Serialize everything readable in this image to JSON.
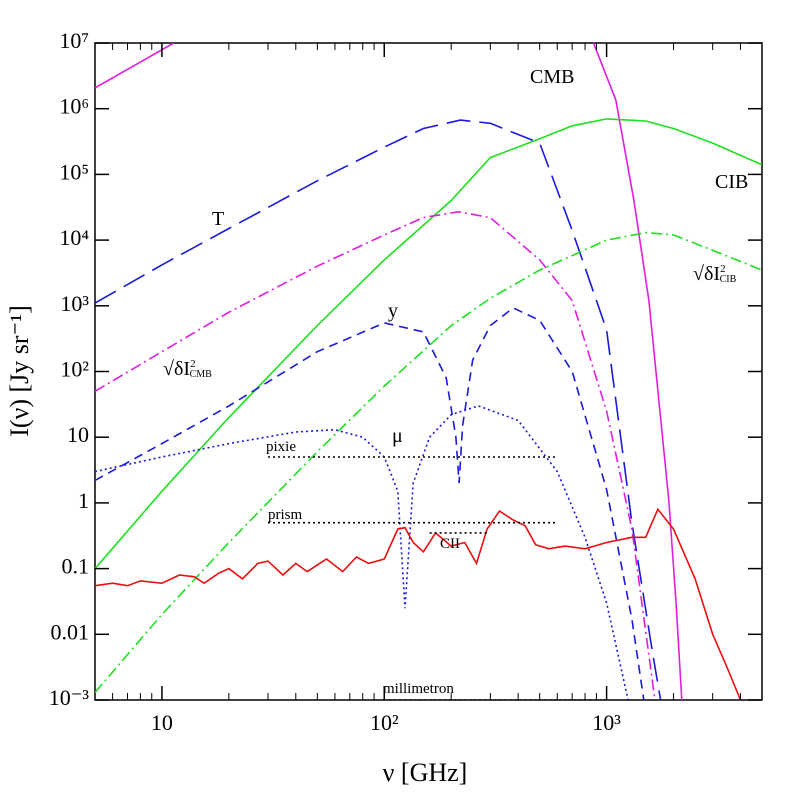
{
  "chart_data": {
    "type": "line",
    "x_label": "ν  [GHz]",
    "y_label": "I(ν)  [Jy sr⁻¹]",
    "xscale": "log",
    "yscale": "log",
    "xlim": [
      5,
      5000
    ],
    "ylim": [
      0.001,
      10000000
    ],
    "xticks": [
      {
        "value": 10,
        "label": "10"
      },
      {
        "value": 100,
        "label": "10²"
      },
      {
        "value": 1000,
        "label": "10³"
      }
    ],
    "xminorticks": [
      6,
      7,
      8,
      9,
      20,
      30,
      40,
      50,
      60,
      70,
      80,
      90,
      200,
      300,
      400,
      500,
      600,
      700,
      800,
      900,
      2000,
      3000,
      4000
    ],
    "yticks": [
      {
        "value": 0.001,
        "label": "10⁻³"
      },
      0.01,
      0.1,
      1,
      10,
      {
        "value": 100,
        "label": "10²"
      },
      {
        "value": 1000,
        "label": "10³"
      },
      {
        "value": 10000,
        "label": "10⁴"
      },
      {
        "value": 100000,
        "label": "10⁵"
      },
      {
        "value": 1000000,
        "label": "10⁶"
      },
      {
        "value": 10000000,
        "label": "10⁷"
      }
    ],
    "series": [
      {
        "name": "CMB",
        "color": "#e01ee0",
        "style": "solid",
        "x": [
          5,
          11.3,
          100,
          873,
          1100,
          1325,
          1549,
          1718,
          1905,
          2050,
          2180
        ],
        "values": [
          2070000,
          10000000,
          null,
          10000000,
          1360000,
          41000,
          1200,
          37,
          1.1,
          0.033,
          0.001
        ]
      },
      {
        "name": "T",
        "color": "#1a1ad8",
        "style": "long-dash",
        "x": [
          5,
          10,
          20,
          50,
          100,
          150,
          220,
          300,
          500,
          700,
          1000,
          1300,
          1600,
          1750
        ],
        "values": [
          1100,
          4200,
          15000,
          80000,
          260000,
          500000,
          670000,
          600000,
          300000,
          14000,
          430,
          0.5,
          0.0059,
          0.001
        ]
      },
      {
        "name": "CIB",
        "color": "#1ee01e",
        "style": "solid",
        "x": [
          5,
          10,
          20,
          50,
          100,
          200,
          300,
          500,
          700,
          1000,
          1500,
          2000,
          3000,
          5000
        ],
        "values": [
          0.1,
          1.5,
          20,
          500,
          5000,
          40000,
          180000,
          350000,
          550000,
          700000,
          650000,
          500000,
          300000,
          140000
        ]
      },
      {
        "name": "√δI",
        "name_sup": "2",
        "name_sub": "CIB",
        "color": "#1ee01e",
        "style": "dash-dot",
        "x": [
          5,
          10,
          20,
          50,
          100,
          200,
          300,
          500,
          1000,
          1500,
          2000,
          3000,
          5000
        ],
        "values": [
          0.0013,
          0.02,
          0.25,
          6,
          60,
          500,
          1300,
          3500,
          10000,
          13000,
          12000,
          7000,
          3500
        ]
      },
      {
        "name": "√δI",
        "name_sup": "2",
        "name_sub": "CMB",
        "color": "#e01ee0",
        "style": "dash-dot",
        "x": [
          5,
          10,
          20,
          50,
          100,
          150,
          215,
          300,
          500,
          700,
          1000,
          1300,
          1650
        ],
        "values": [
          50,
          200,
          800,
          4000,
          12000,
          22000,
          27000,
          22000,
          5000,
          1200,
          25,
          0.4,
          0.001
        ]
      },
      {
        "name": "y",
        "color": "#1a1ad8",
        "style": "short-dash",
        "x": [
          5,
          10,
          20,
          50,
          100,
          150,
          190,
          210,
          217,
          225,
          250,
          300,
          380,
          500,
          700,
          1000,
          1300,
          1470
        ],
        "values": [
          2.2,
          8,
          30,
          200,
          550,
          400,
          80,
          10,
          2,
          15,
          150,
          500,
          930,
          600,
          100,
          1.6,
          0.017,
          0.001
        ]
      },
      {
        "name": "μ",
        "color": "#1a1ad8",
        "style": "dotted",
        "x": [
          5,
          10,
          20,
          40,
          60,
          80,
          100,
          115,
          124,
          135,
          160,
          200,
          265,
          400,
          600,
          800,
          1000,
          1250
        ],
        "values": [
          3,
          5,
          8,
          12,
          13,
          10,
          5,
          1.5,
          0.025,
          2,
          10,
          22,
          30,
          18,
          3,
          0.3,
          0.03,
          0.001
        ]
      },
      {
        "color": "#e81010",
        "style": "solid",
        "x": [
          5,
          6,
          7,
          8,
          10,
          12,
          14,
          15.5,
          18,
          20,
          23,
          27,
          30,
          35,
          40,
          45,
          55,
          65,
          75,
          85,
          100,
          115,
          124,
          135,
          150,
          170,
          200,
          230,
          260,
          290,
          330,
          380,
          430,
          480,
          550,
          650,
          800,
          1000,
          1300,
          1500,
          1700,
          2000,
          2500,
          3000,
          3500,
          4000
        ],
        "values": [
          0.055,
          0.06,
          0.055,
          0.065,
          0.06,
          0.08,
          0.075,
          0.06,
          0.085,
          0.1,
          0.07,
          0.12,
          0.13,
          0.08,
          0.12,
          0.09,
          0.14,
          0.09,
          0.15,
          0.12,
          0.14,
          0.4,
          0.42,
          0.25,
          0.18,
          0.35,
          0.22,
          0.25,
          0.12,
          0.4,
          0.75,
          0.55,
          0.45,
          0.23,
          0.2,
          0.22,
          0.2,
          0.25,
          0.3,
          0.3,
          0.8,
          0.4,
          0.07,
          0.01,
          0.003,
          0.001
        ]
      },
      {
        "name": "pixie",
        "color": "#000000",
        "style": "dotted",
        "x": [
          30,
          600
        ],
        "values": [
          5,
          5
        ]
      },
      {
        "name": "prism",
        "color": "#000000",
        "style": "dotted",
        "x": [
          30,
          600
        ],
        "values": [
          0.5,
          0.5
        ]
      },
      {
        "name": "CII",
        "color": "#000000",
        "style": "dotted",
        "x": [
          160,
          290
        ],
        "values": [
          0.35,
          0.35
        ]
      },
      {
        "name": "millimetron",
        "color": "#000000",
        "style": "dotted",
        "x": [
          100,
          1000
        ],
        "values": [
          0.001,
          0.001
        ]
      }
    ]
  }
}
